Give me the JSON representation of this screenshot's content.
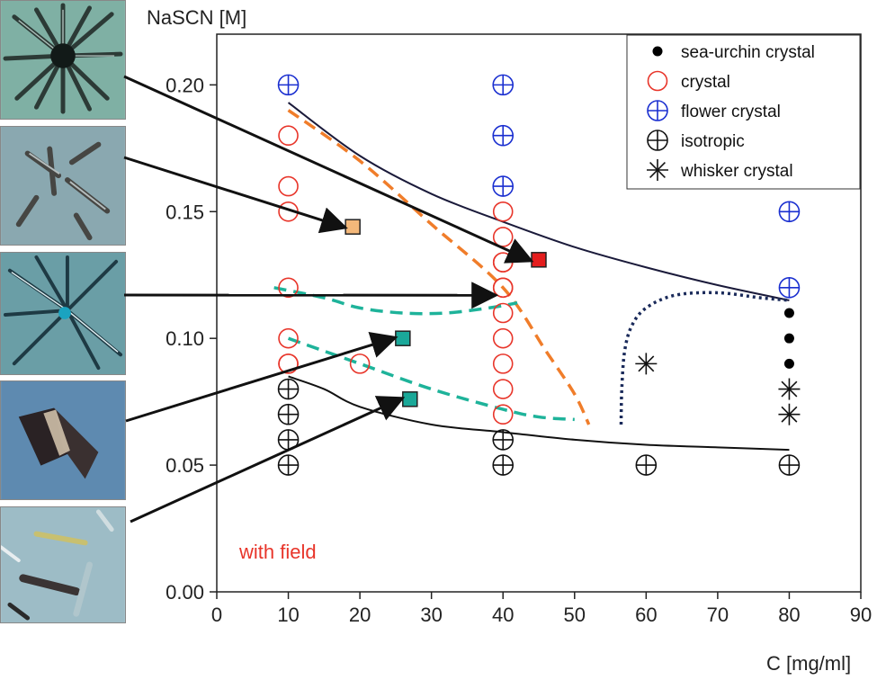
{
  "chart_data": {
    "type": "scatter",
    "xlabel": "C [mg/ml]",
    "ylabel": "NaSCN [M]",
    "xlim": [
      0,
      90
    ],
    "ylim": [
      0,
      0.22
    ],
    "x_ticks": [
      0,
      10,
      20,
      30,
      40,
      50,
      60,
      70,
      80,
      90
    ],
    "x_tick_labels": [
      "0",
      "10",
      "20",
      "30",
      "40",
      "50",
      "60",
      "70",
      "80",
      "90"
    ],
    "y_ticks": [
      0.0,
      0.05,
      0.1,
      0.15,
      0.2
    ],
    "y_tick_labels": [
      "0.00",
      "0.05",
      "0.10",
      "0.15",
      "0.20"
    ],
    "grid": false,
    "legend_position": "top-right",
    "annotation": {
      "text": "with field",
      "color": "#e8352a"
    },
    "series": [
      {
        "name": "sea-urchin crystal",
        "marker": "filled-dot",
        "color": "#000000",
        "x": [
          80,
          80,
          80
        ],
        "y": [
          0.11,
          0.1,
          0.09
        ]
      },
      {
        "name": "crystal",
        "marker": "open-circle",
        "color": "#e8352a",
        "x": [
          10,
          10,
          10,
          10,
          10,
          10,
          10,
          20,
          40,
          40,
          40,
          40,
          40,
          40,
          40,
          40,
          40,
          40,
          40
        ],
        "y": [
          0.18,
          0.16,
          0.15,
          0.12,
          0.1,
          0.09,
          0.09,
          0.09,
          0.15,
          0.14,
          0.13,
          0.12,
          0.11,
          0.1,
          0.09,
          0.08,
          0.07,
          0.13,
          0.12
        ]
      },
      {
        "name": "flower crystal",
        "marker": "crossed-circle",
        "color": "#1a2fd0",
        "x": [
          10,
          40,
          40,
          40,
          80,
          80
        ],
        "y": [
          0.2,
          0.2,
          0.18,
          0.16,
          0.15,
          0.12
        ]
      },
      {
        "name": "isotropic",
        "marker": "crossed-circle",
        "color": "#111111",
        "x": [
          10,
          10,
          10,
          10,
          40,
          40,
          60,
          80
        ],
        "y": [
          0.08,
          0.07,
          0.06,
          0.05,
          0.06,
          0.05,
          0.05,
          0.05
        ]
      },
      {
        "name": "whisker crystal",
        "marker": "asterisk",
        "color": "#111111",
        "x": [
          60,
          80,
          80
        ],
        "y": [
          0.09,
          0.08,
          0.07
        ]
      }
    ],
    "boundaries": [
      {
        "style": "solid",
        "color": "#1a1a3a",
        "x": [
          10,
          20,
          30,
          40,
          50,
          60,
          70,
          80
        ],
        "y": [
          0.193,
          0.172,
          0.157,
          0.146,
          0.136,
          0.128,
          0.121,
          0.115
        ]
      },
      {
        "style": "solid",
        "color": "#111111",
        "x": [
          10,
          15,
          20,
          30,
          40,
          50,
          60,
          70,
          80
        ],
        "y": [
          0.085,
          0.08,
          0.073,
          0.066,
          0.063,
          0.06,
          0.058,
          0.057,
          0.056
        ]
      },
      {
        "style": "dashed",
        "color": "#f07d2a",
        "x": [
          10,
          20,
          30,
          40,
          46,
          50,
          52
        ],
        "y": [
          0.19,
          0.17,
          0.145,
          0.12,
          0.095,
          0.078,
          0.066
        ]
      },
      {
        "style": "dashed",
        "color": "#1eb39a",
        "x": [
          8,
          15,
          20,
          26,
          32,
          38,
          42
        ],
        "y": [
          0.12,
          0.116,
          0.112,
          0.11,
          0.11,
          0.112,
          0.114
        ]
      },
      {
        "style": "dashed",
        "color": "#1eb39a",
        "x": [
          10,
          20,
          30,
          40,
          45,
          50
        ],
        "y": [
          0.1,
          0.09,
          0.08,
          0.072,
          0.069,
          0.068
        ]
      },
      {
        "style": "dotted",
        "color": "#1a2a5a",
        "x": [
          56.5,
          56.6,
          57,
          58,
          60,
          64,
          70,
          76,
          80
        ],
        "y": [
          0.066,
          0.08,
          0.095,
          0.105,
          0.112,
          0.117,
          0.118,
          0.116,
          0.115
        ]
      }
    ],
    "highlight_squares": [
      {
        "x": 19,
        "y": 0.144,
        "color": "#f4b87a"
      },
      {
        "x": 45,
        "y": 0.131,
        "color": "#e41d1d"
      },
      {
        "x": 26,
        "y": 0.1,
        "color": "#1aa89a"
      },
      {
        "x": 27,
        "y": 0.076,
        "color": "#1aa898"
      }
    ],
    "image_arrows": [
      {
        "image": "sea-urchin",
        "to": [
          45,
          0.131
        ]
      },
      {
        "image": "plate",
        "to": [
          19,
          0.144
        ]
      },
      {
        "image": "needle-star",
        "to": [
          40,
          0.117
        ]
      },
      {
        "image": "whisker",
        "to": [
          26,
          0.1
        ]
      },
      {
        "image": "rods",
        "to": [
          27,
          0.076
        ]
      }
    ]
  }
}
